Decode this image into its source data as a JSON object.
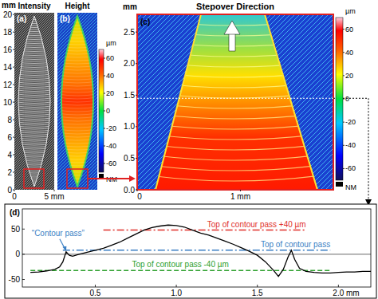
{
  "figure": {
    "panels": [
      {
        "label": "(a)",
        "title": "Intensity",
        "y_unit": "mm",
        "ylim": [
          0,
          20.2
        ],
        "yticks": [
          0,
          2,
          4,
          6,
          8,
          10,
          12,
          14,
          16,
          18,
          20
        ],
        "xlim": [
          0,
          5
        ],
        "xticks": [
          0,
          {
            "value": 5,
            "label": "5 mm"
          }
        ]
      },
      {
        "label": "(b)",
        "title": "Height",
        "colorbar": {
          "unit": "µm",
          "range": [
            -70,
            70
          ],
          "ticks": [
            60,
            40,
            20,
            0,
            -20,
            -40,
            -60
          ],
          "no_data_label": "NM"
        }
      },
      {
        "label": "(c)",
        "title": "Stepover Direction",
        "y_unit": "mm",
        "ylim": [
          0,
          2.78
        ],
        "yticks": [
          {
            "value": 0,
            "label": "0.0"
          },
          0.5,
          {
            "value": 1,
            "label": "1.0"
          },
          1.5,
          {
            "value": 2,
            "label": "2.0"
          },
          2.5
        ],
        "xlim": [
          0,
          1.9
        ],
        "xticks": [
          0,
          {
            "value": 1,
            "label": "1 mm"
          }
        ],
        "profile_y": 1.45,
        "colorbar": {
          "unit": "µm",
          "range": [
            -70,
            70
          ],
          "ticks": [
            60,
            40,
            20,
            0,
            -20,
            -40,
            -60
          ],
          "no_data_label": "NM"
        }
      }
    ]
  },
  "chart_data": {
    "type": "line",
    "label": "(d)",
    "color": "#000000",
    "x": [
      0.1,
      0.15,
      0.2,
      0.25,
      0.28,
      0.3,
      0.32,
      0.34,
      0.36,
      0.4,
      0.45,
      0.5,
      0.55,
      0.6,
      0.65,
      0.7,
      0.75,
      0.8,
      0.85,
      0.9,
      0.95,
      1.0,
      1.05,
      1.1,
      1.15,
      1.2,
      1.25,
      1.3,
      1.35,
      1.4,
      1.45,
      1.5,
      1.55,
      1.6,
      1.63,
      1.66,
      1.69,
      1.71,
      1.73,
      1.76,
      1.8,
      1.85,
      1.9,
      1.95,
      2.0,
      2.05,
      2.1,
      2.15,
      2.2
    ],
    "values": [
      -36,
      -35,
      -33,
      -30,
      -25,
      -15,
      5,
      -2,
      -4,
      0,
      4,
      8,
      12,
      18,
      24,
      32,
      40,
      48,
      53,
      56,
      58,
      57,
      54,
      48,
      42,
      38,
      32,
      26,
      20,
      13,
      6,
      -2,
      -15,
      -32,
      -44,
      -30,
      -5,
      8,
      -10,
      -28,
      -34,
      -36,
      -37,
      -37,
      -36,
      -35,
      -35,
      -34,
      -34
    ],
    "xlim": [
      0.05,
      2.2
    ],
    "ylim": [
      -65,
      90
    ],
    "xticks": [
      0.5,
      {
        "value": 1,
        "label": "1.0"
      },
      1.5,
      {
        "value": 2,
        "label": "2.0 mm"
      }
    ],
    "yticks": [
      -50,
      0,
      50
    ],
    "grid": false,
    "reference_lines": [
      {
        "label": "Top of contour pass +40 µm",
        "value": 48,
        "x_start": 0.55,
        "x_end": 1.8,
        "color": "#e0302a",
        "line_style": "dashdot"
      },
      {
        "label": "Top of contour pass",
        "value": 8,
        "x_start": 0.3,
        "x_end": 1.95,
        "color": "#3a7fc4",
        "line_style": "dashdot"
      },
      {
        "label": "Top of contour pass -40 µm",
        "value": -32,
        "x_start": 0.1,
        "x_end": 1.95,
        "color": "#2ca02c",
        "line_style": "dashed"
      }
    ],
    "annotations": [
      {
        "text": "“Contour pass”",
        "x": 0.32,
        "y": 5,
        "color": "#3a7fc4"
      }
    ]
  }
}
